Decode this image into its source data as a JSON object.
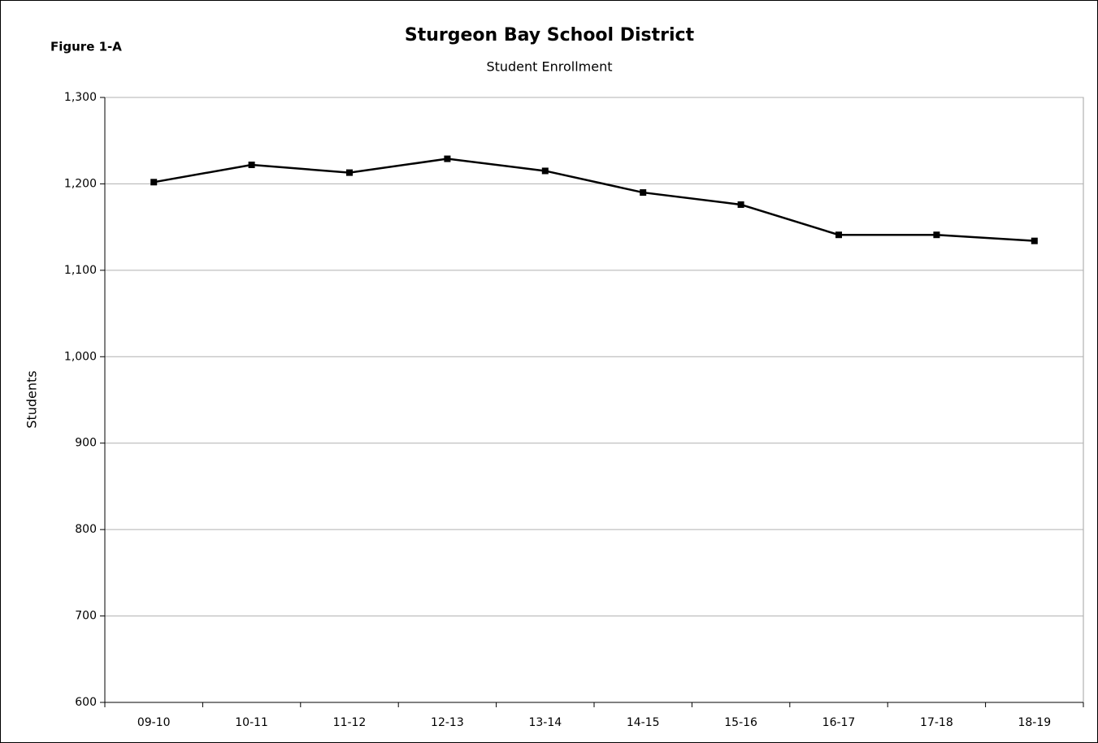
{
  "chart_data": {
    "type": "line",
    "title": "Sturgeon Bay School District",
    "subtitle": "Student Enrollment",
    "annotation": "Figure 1-A",
    "y_label": "Students",
    "categories": [
      "09-10",
      "10-11",
      "11-12",
      "12-13",
      "13-14",
      "14-15",
      "15-16",
      "16-17",
      "17-18",
      "18-19"
    ],
    "series": [
      {
        "name": "Students",
        "color": "#000000",
        "values": [
          1202,
          1222,
          1213,
          1229,
          1215,
          1190,
          1176,
          1141,
          1141,
          1134
        ]
      }
    ],
    "ylim": [
      600,
      1300
    ],
    "yticks": [
      600,
      700,
      800,
      900,
      {
        "value": 1000,
        "label": "1,000"
      },
      {
        "value": 1100,
        "label": "1,100"
      },
      {
        "value": 1200,
        "label": "1,200"
      },
      {
        "value": 1300,
        "label": "1,300"
      }
    ],
    "grid": true
  }
}
